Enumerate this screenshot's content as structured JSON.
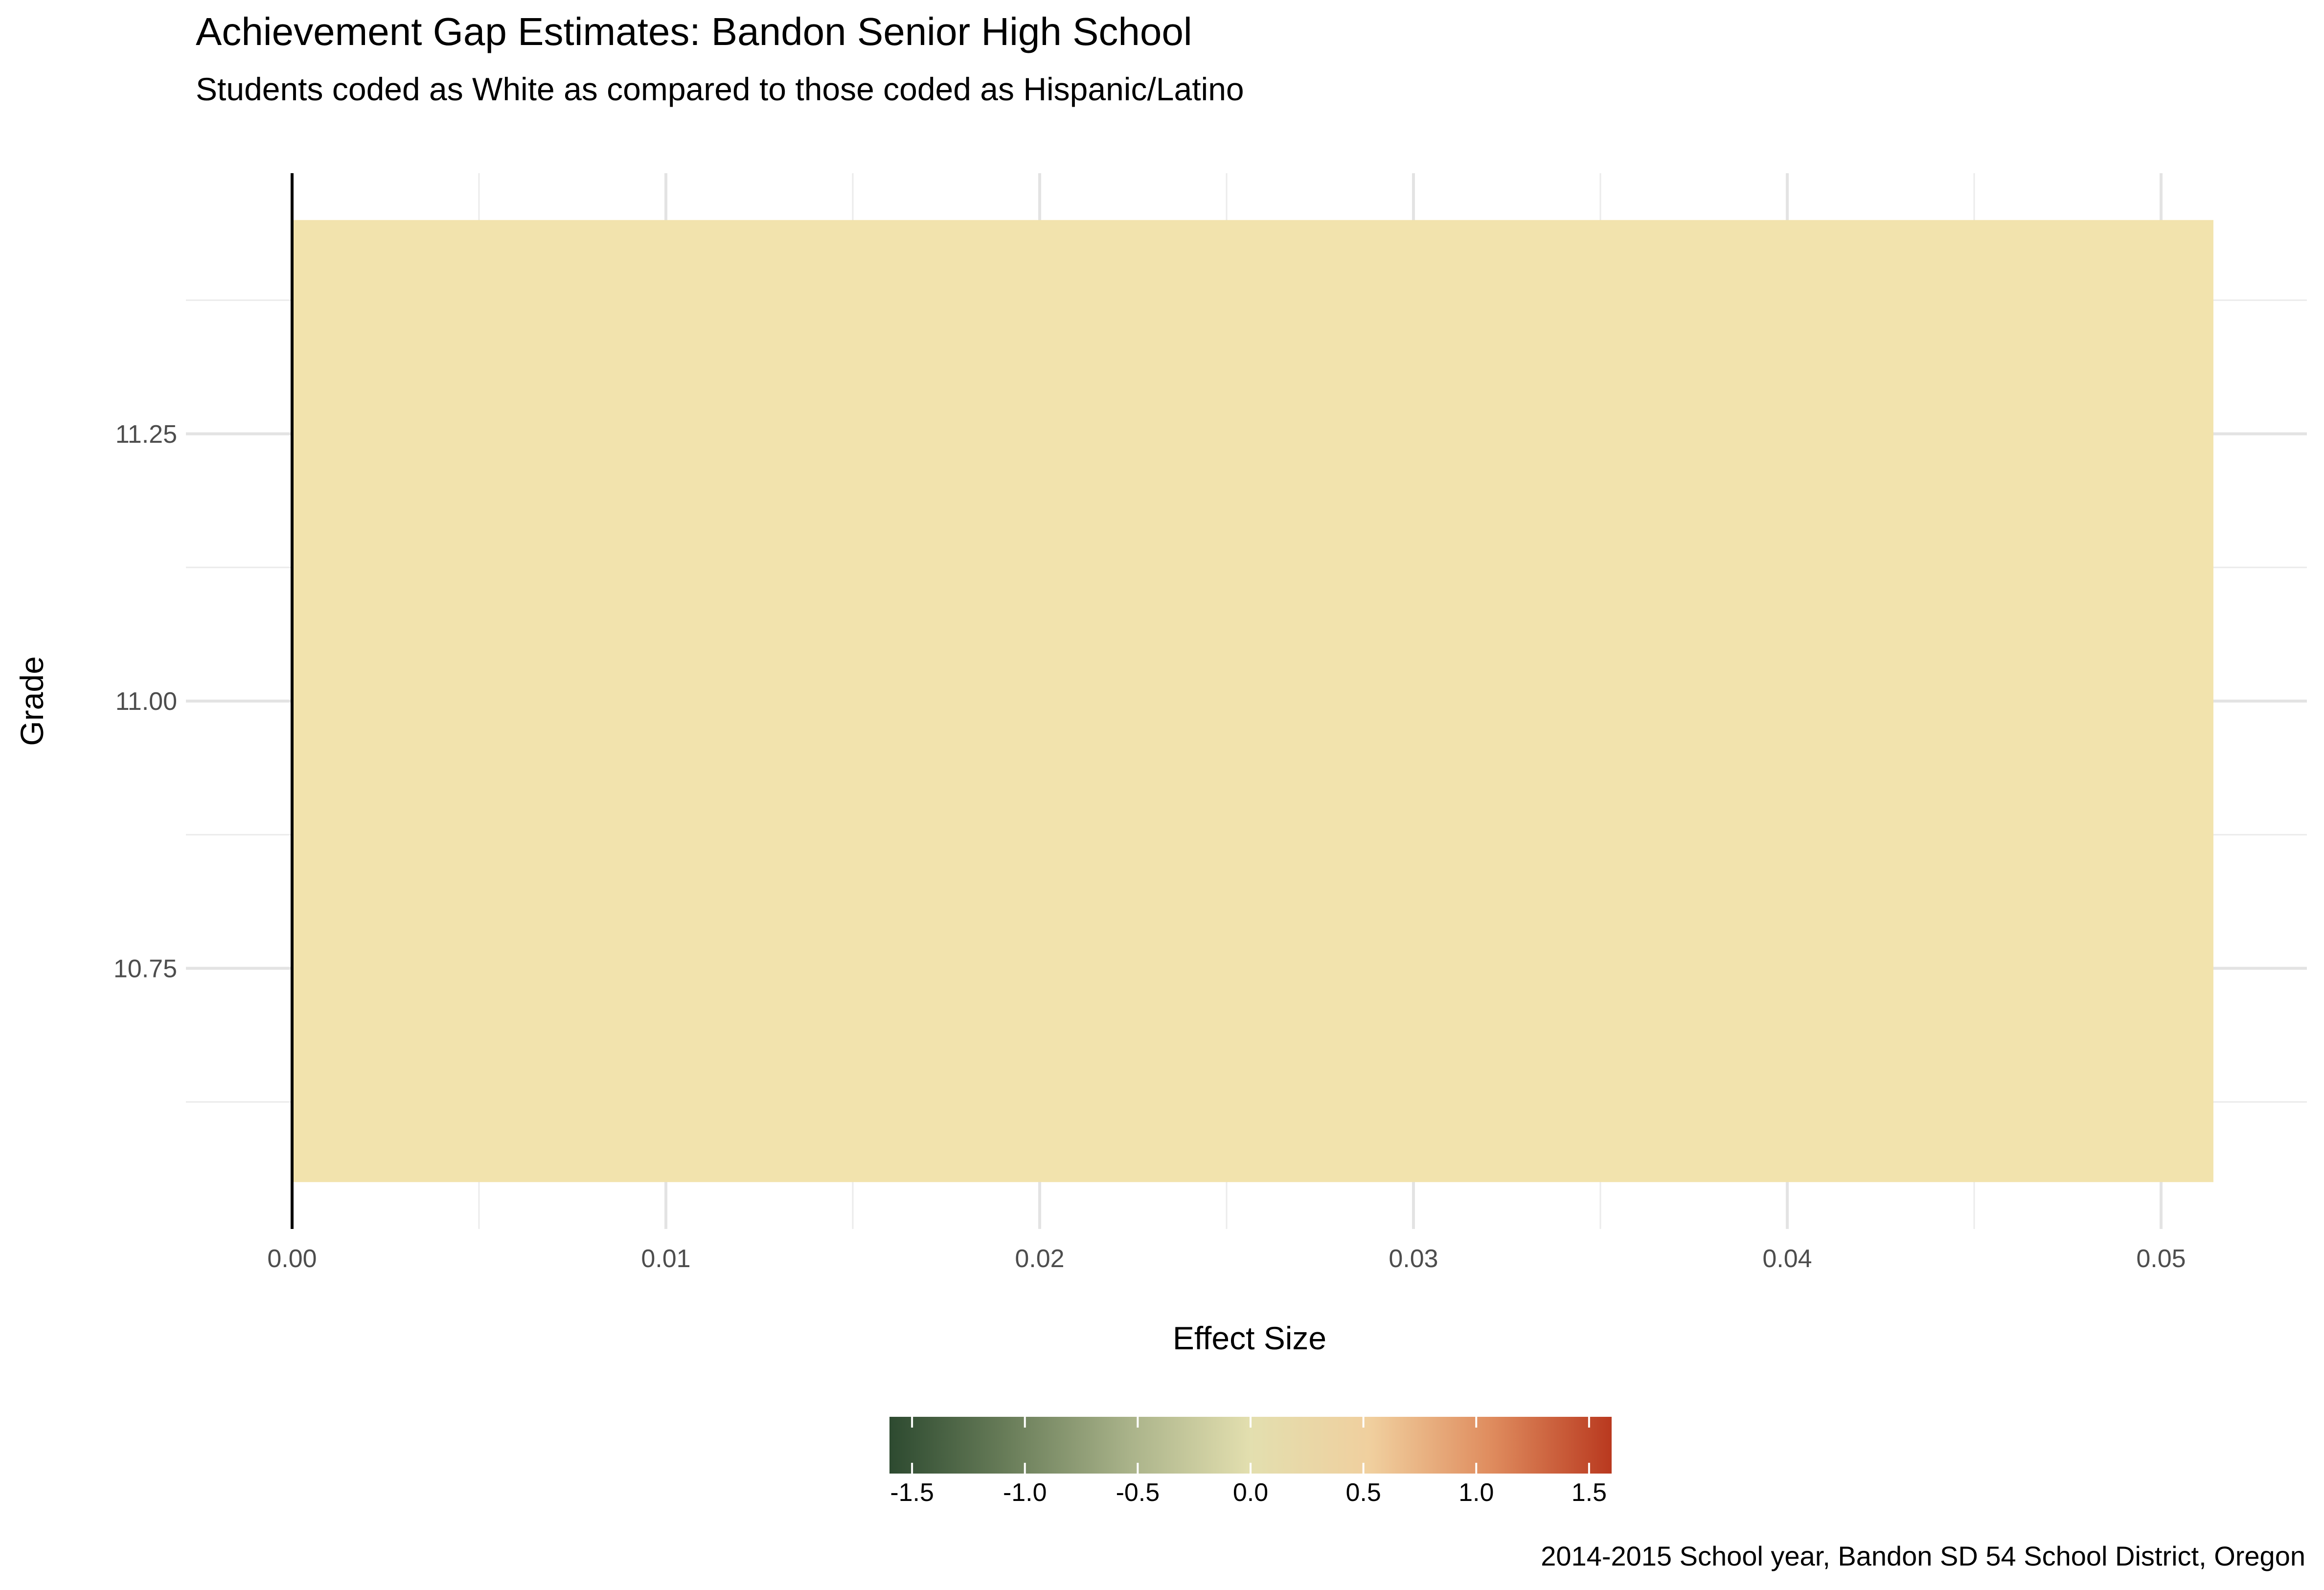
{
  "chart_data": {
    "type": "bar",
    "orientation": "horizontal",
    "title": "Achievement Gap Estimates: Bandon Senior High School",
    "subtitle": "Students coded as White as compared to those coded as Hispanic/Latino",
    "xlabel": "Effect Size",
    "ylabel": "Grade",
    "caption": "2014-2015 School year, Bandon SD 54 School District, Oregon",
    "xlim": [
      0.0,
      0.05
    ],
    "ylim": [
      10.5,
      11.5
    ],
    "x_ticks": [
      "0.00",
      "0.01",
      "0.02",
      "0.03",
      "0.04",
      "0.05"
    ],
    "y_ticks": [
      "10.75",
      "11.00",
      "11.25"
    ],
    "grid": true,
    "bars": [
      {
        "grade": 11,
        "effect_size": 0.0514,
        "color": "#F2E3AD"
      }
    ],
    "legend": {
      "type": "colorbar",
      "placement": "bottom",
      "limits": [
        -1.6,
        1.6
      ],
      "breaks": [
        "-1.5",
        "-1.0",
        "-0.5",
        "0.0",
        "0.5",
        "1.0",
        "1.5"
      ],
      "colors": [
        "#2D4A30",
        "#6A7E5A",
        "#AAB38A",
        "#E3DFAF",
        "#F0CF9E",
        "#DF8C5E",
        "#B9391F"
      ]
    }
  }
}
